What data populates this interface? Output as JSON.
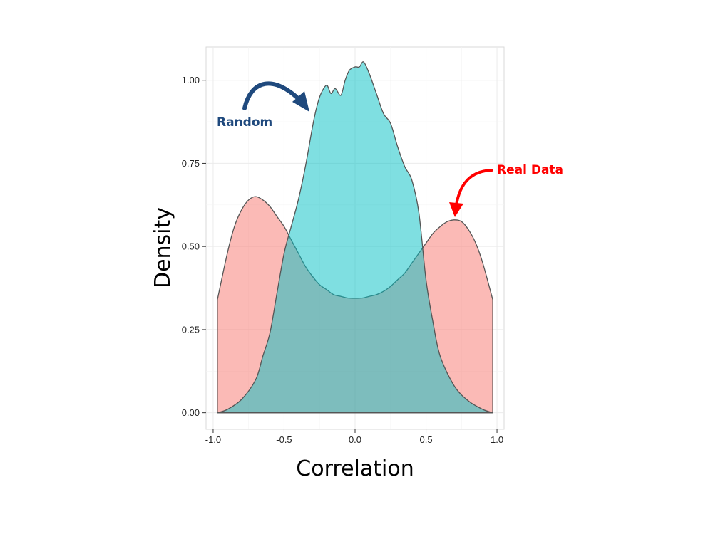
{
  "chart_data": {
    "type": "area",
    "xlabel": "Correlation",
    "ylabel": "Density",
    "xlim": [
      -1.05,
      1.05
    ],
    "ylim": [
      -0.05,
      1.1
    ],
    "x_ticks": [
      "-1.0",
      "-0.5",
      "0.0",
      "0.5",
      "1.0"
    ],
    "y_ticks": [
      "0.00",
      "0.25",
      "0.50",
      "0.75",
      "1.00"
    ],
    "x_tick_values": [
      -1.0,
      -0.5,
      0.0,
      0.5,
      1.0
    ],
    "y_tick_values": [
      0.0,
      0.25,
      0.5,
      0.75,
      1.0
    ],
    "grid": true,
    "series": [
      {
        "color": "#F8766D",
        "points": [
          [
            -0.97,
            0.34
          ],
          [
            -0.9,
            0.48
          ],
          [
            -0.85,
            0.56
          ],
          [
            -0.8,
            0.61
          ],
          [
            -0.75,
            0.64
          ],
          [
            -0.7,
            0.65
          ],
          [
            -0.65,
            0.64
          ],
          [
            -0.6,
            0.62
          ],
          [
            -0.55,
            0.59
          ],
          [
            -0.5,
            0.56
          ],
          [
            -0.45,
            0.52
          ],
          [
            -0.4,
            0.48
          ],
          [
            -0.35,
            0.44
          ],
          [
            -0.3,
            0.41
          ],
          [
            -0.25,
            0.385
          ],
          [
            -0.2,
            0.37
          ],
          [
            -0.15,
            0.355
          ],
          [
            -0.1,
            0.35
          ],
          [
            -0.05,
            0.345
          ],
          [
            0.0,
            0.344
          ],
          [
            0.05,
            0.345
          ],
          [
            0.1,
            0.35
          ],
          [
            0.15,
            0.355
          ],
          [
            0.2,
            0.365
          ],
          [
            0.25,
            0.38
          ],
          [
            0.3,
            0.4
          ],
          [
            0.35,
            0.42
          ],
          [
            0.4,
            0.45
          ],
          [
            0.45,
            0.48
          ],
          [
            0.5,
            0.51
          ],
          [
            0.55,
            0.54
          ],
          [
            0.6,
            0.56
          ],
          [
            0.65,
            0.575
          ],
          [
            0.7,
            0.58
          ],
          [
            0.75,
            0.575
          ],
          [
            0.8,
            0.55
          ],
          [
            0.85,
            0.51
          ],
          [
            0.9,
            0.45
          ],
          [
            0.97,
            0.34
          ]
        ]
      },
      {
        "color": "#00BFC4",
        "points": [
          [
            -0.97,
            0.0
          ],
          [
            -0.9,
            0.01
          ],
          [
            -0.8,
            0.04
          ],
          [
            -0.7,
            0.1
          ],
          [
            -0.65,
            0.17
          ],
          [
            -0.6,
            0.24
          ],
          [
            -0.55,
            0.36
          ],
          [
            -0.5,
            0.48
          ],
          [
            -0.45,
            0.56
          ],
          [
            -0.4,
            0.64
          ],
          [
            -0.35,
            0.74
          ],
          [
            -0.3,
            0.86
          ],
          [
            -0.27,
            0.92
          ],
          [
            -0.24,
            0.96
          ],
          [
            -0.2,
            0.985
          ],
          [
            -0.17,
            0.96
          ],
          [
            -0.14,
            0.975
          ],
          [
            -0.1,
            0.955
          ],
          [
            -0.07,
            1.0
          ],
          [
            -0.04,
            1.03
          ],
          [
            0.0,
            1.04
          ],
          [
            0.03,
            1.04
          ],
          [
            0.06,
            1.055
          ],
          [
            0.1,
            1.02
          ],
          [
            0.15,
            0.96
          ],
          [
            0.2,
            0.9
          ],
          [
            0.25,
            0.87
          ],
          [
            0.3,
            0.8
          ],
          [
            0.35,
            0.74
          ],
          [
            0.4,
            0.7
          ],
          [
            0.45,
            0.6
          ],
          [
            0.5,
            0.4
          ],
          [
            0.55,
            0.27
          ],
          [
            0.6,
            0.17
          ],
          [
            0.7,
            0.08
          ],
          [
            0.8,
            0.035
          ],
          [
            0.9,
            0.01
          ],
          [
            0.97,
            0.0
          ]
        ]
      }
    ],
    "annotations": [
      {
        "text": "Random",
        "color": "#1F497D"
      },
      {
        "text": "Real Data",
        "color": "#FF0000"
      }
    ]
  }
}
